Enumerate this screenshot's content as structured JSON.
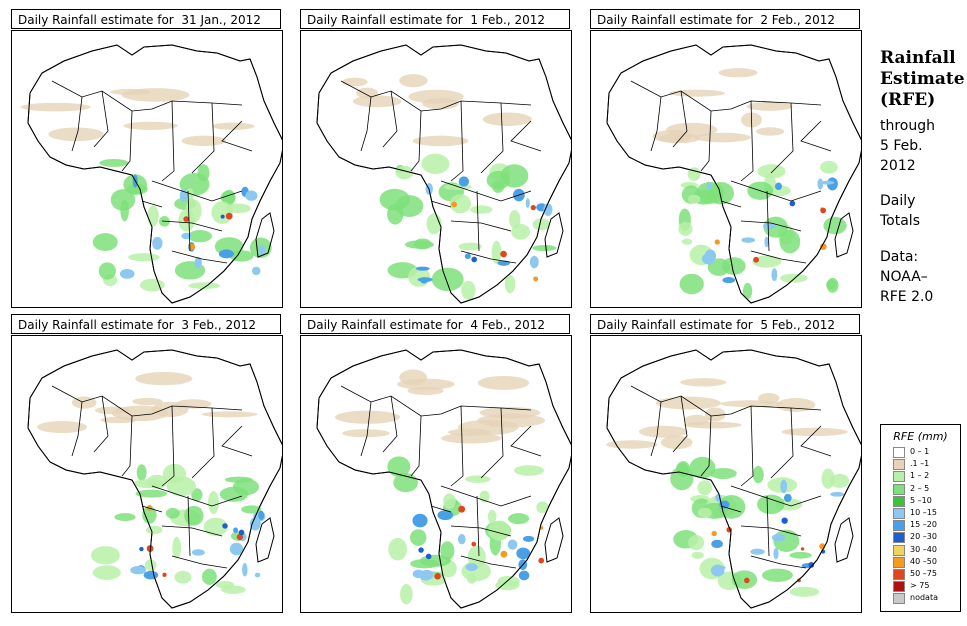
{
  "panels": [
    {
      "title": "Daily Rainfall estimate for  31 Jan., 2012"
    },
    {
      "title": "Daily Rainfall estimate for  1 Feb., 2012"
    },
    {
      "title": "Daily Rainfall estimate for  2 Feb., 2012"
    },
    {
      "title": "Daily Rainfall estimate for  3 Feb., 2012"
    },
    {
      "title": "Daily Rainfall estimate for  4 Feb., 2012"
    },
    {
      "title": "Daily Rainfall estimate for  5 Feb., 2012"
    }
  ],
  "sidebar": {
    "title_line1": "Rainfall",
    "title_line2": "Estimate",
    "title_line3": "(RFE)",
    "through": "through",
    "date_line1": "5 Feb.",
    "date_line2": "2012",
    "totals_line1": "Daily",
    "totals_line2": "Totals",
    "data_label": "Data:",
    "source_line1": "NOAA–",
    "source_line2": "RFE 2.0"
  },
  "legend": {
    "title": "RFE (mm)",
    "items": [
      {
        "label": "0 – 1",
        "color": "#ffffff"
      },
      {
        "label": ".1 –1",
        "color": "#e6d3b8"
      },
      {
        "label": "1 – 2",
        "color": "#b8f0a8"
      },
      {
        "label": "2 – 5",
        "color": "#7ee07a"
      },
      {
        "label": "5 –10",
        "color": "#3ec23e"
      },
      {
        "label": "10 –15",
        "color": "#8cc8f0"
      },
      {
        "label": "15 –20",
        "color": "#4aa0e6"
      },
      {
        "label": "20 –30",
        "color": "#1c5fd0"
      },
      {
        "label": "30 –40",
        "color": "#f2d35a"
      },
      {
        "label": "40 –50",
        "color": "#f59a1e"
      },
      {
        "label": "50 –75",
        "color": "#e0461c"
      },
      {
        "label": "> 75",
        "color": "#b01010"
      },
      {
        "label": "nodata",
        "color": "#c8c8c8"
      }
    ]
  }
}
